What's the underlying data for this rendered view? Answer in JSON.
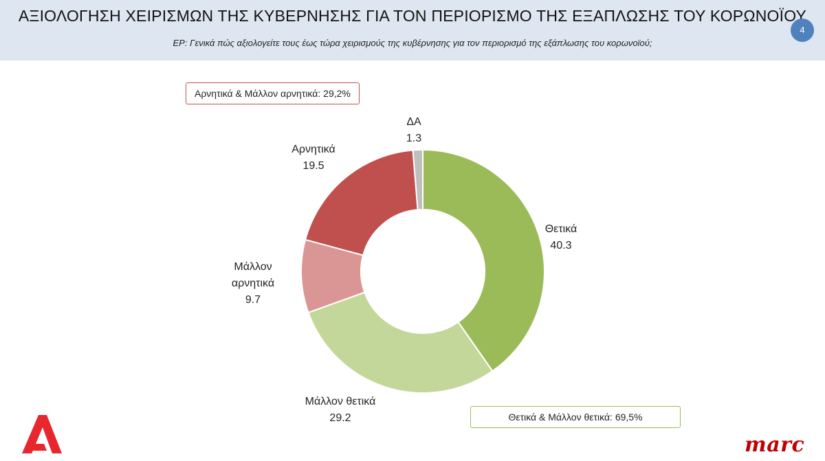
{
  "header": {
    "title": "ΑΞΙΟΛΟΓΗΣΗ ΧΕΙΡΙΣΜΩΝ ΤΗΣ ΚΥΒΕΡΝΗΣΗΣ ΓΙΑ ΤΟΝ ΠΕΡΙΟΡΙΣΜΟ ΤΗΣ ΕΞΑΠΛΩΣΗΣ ΤΟΥ ΚΟΡΩΝΟΪΟΥ",
    "subtitle": "ΕΡ: Γενικά πώς αξιολογείτε  τους έως τώρα χειρισμούς της κυβέρνησης για τον περιορισμό της εξάπλωσης του κορωνοϊού;",
    "page_number": "4"
  },
  "summaries": {
    "negative": "Αρνητικά & Μάλλον αρνητικά: 29,2%",
    "positive": "Θετικά & Μάλλον θετικά: 69,5%"
  },
  "logos": {
    "alpha": "Α",
    "marc": "marc"
  },
  "colors": {
    "header_bg": "#dde6f1",
    "page_badge": "#4f81bd",
    "negative_border": "#c0504d",
    "positive_border": "#9bbb59"
  },
  "chart_data": {
    "type": "pie",
    "donut": true,
    "categories": [
      "Θετικά",
      "Μάλλον θετικά",
      "Μάλλον αρνητικά",
      "Αρνητικά",
      "ΔΑ"
    ],
    "values": [
      40.3,
      29.2,
      9.7,
      19.5,
      1.3
    ],
    "value_labels": [
      "40.3",
      "29.2",
      "9.7",
      "19.5",
      "1.3"
    ],
    "category_labels": [
      "Θετικά",
      "Μάλλον θετικά",
      "Μάλλον\nαρνητικά",
      "Αρνητικά",
      "ΔΑ"
    ],
    "colors": [
      "#9bbb59",
      "#c4d79b",
      "#d99694",
      "#c0504d",
      "#bfbfbf"
    ],
    "start": "12 o'clock",
    "direction": "clockwise",
    "legend": "none"
  }
}
